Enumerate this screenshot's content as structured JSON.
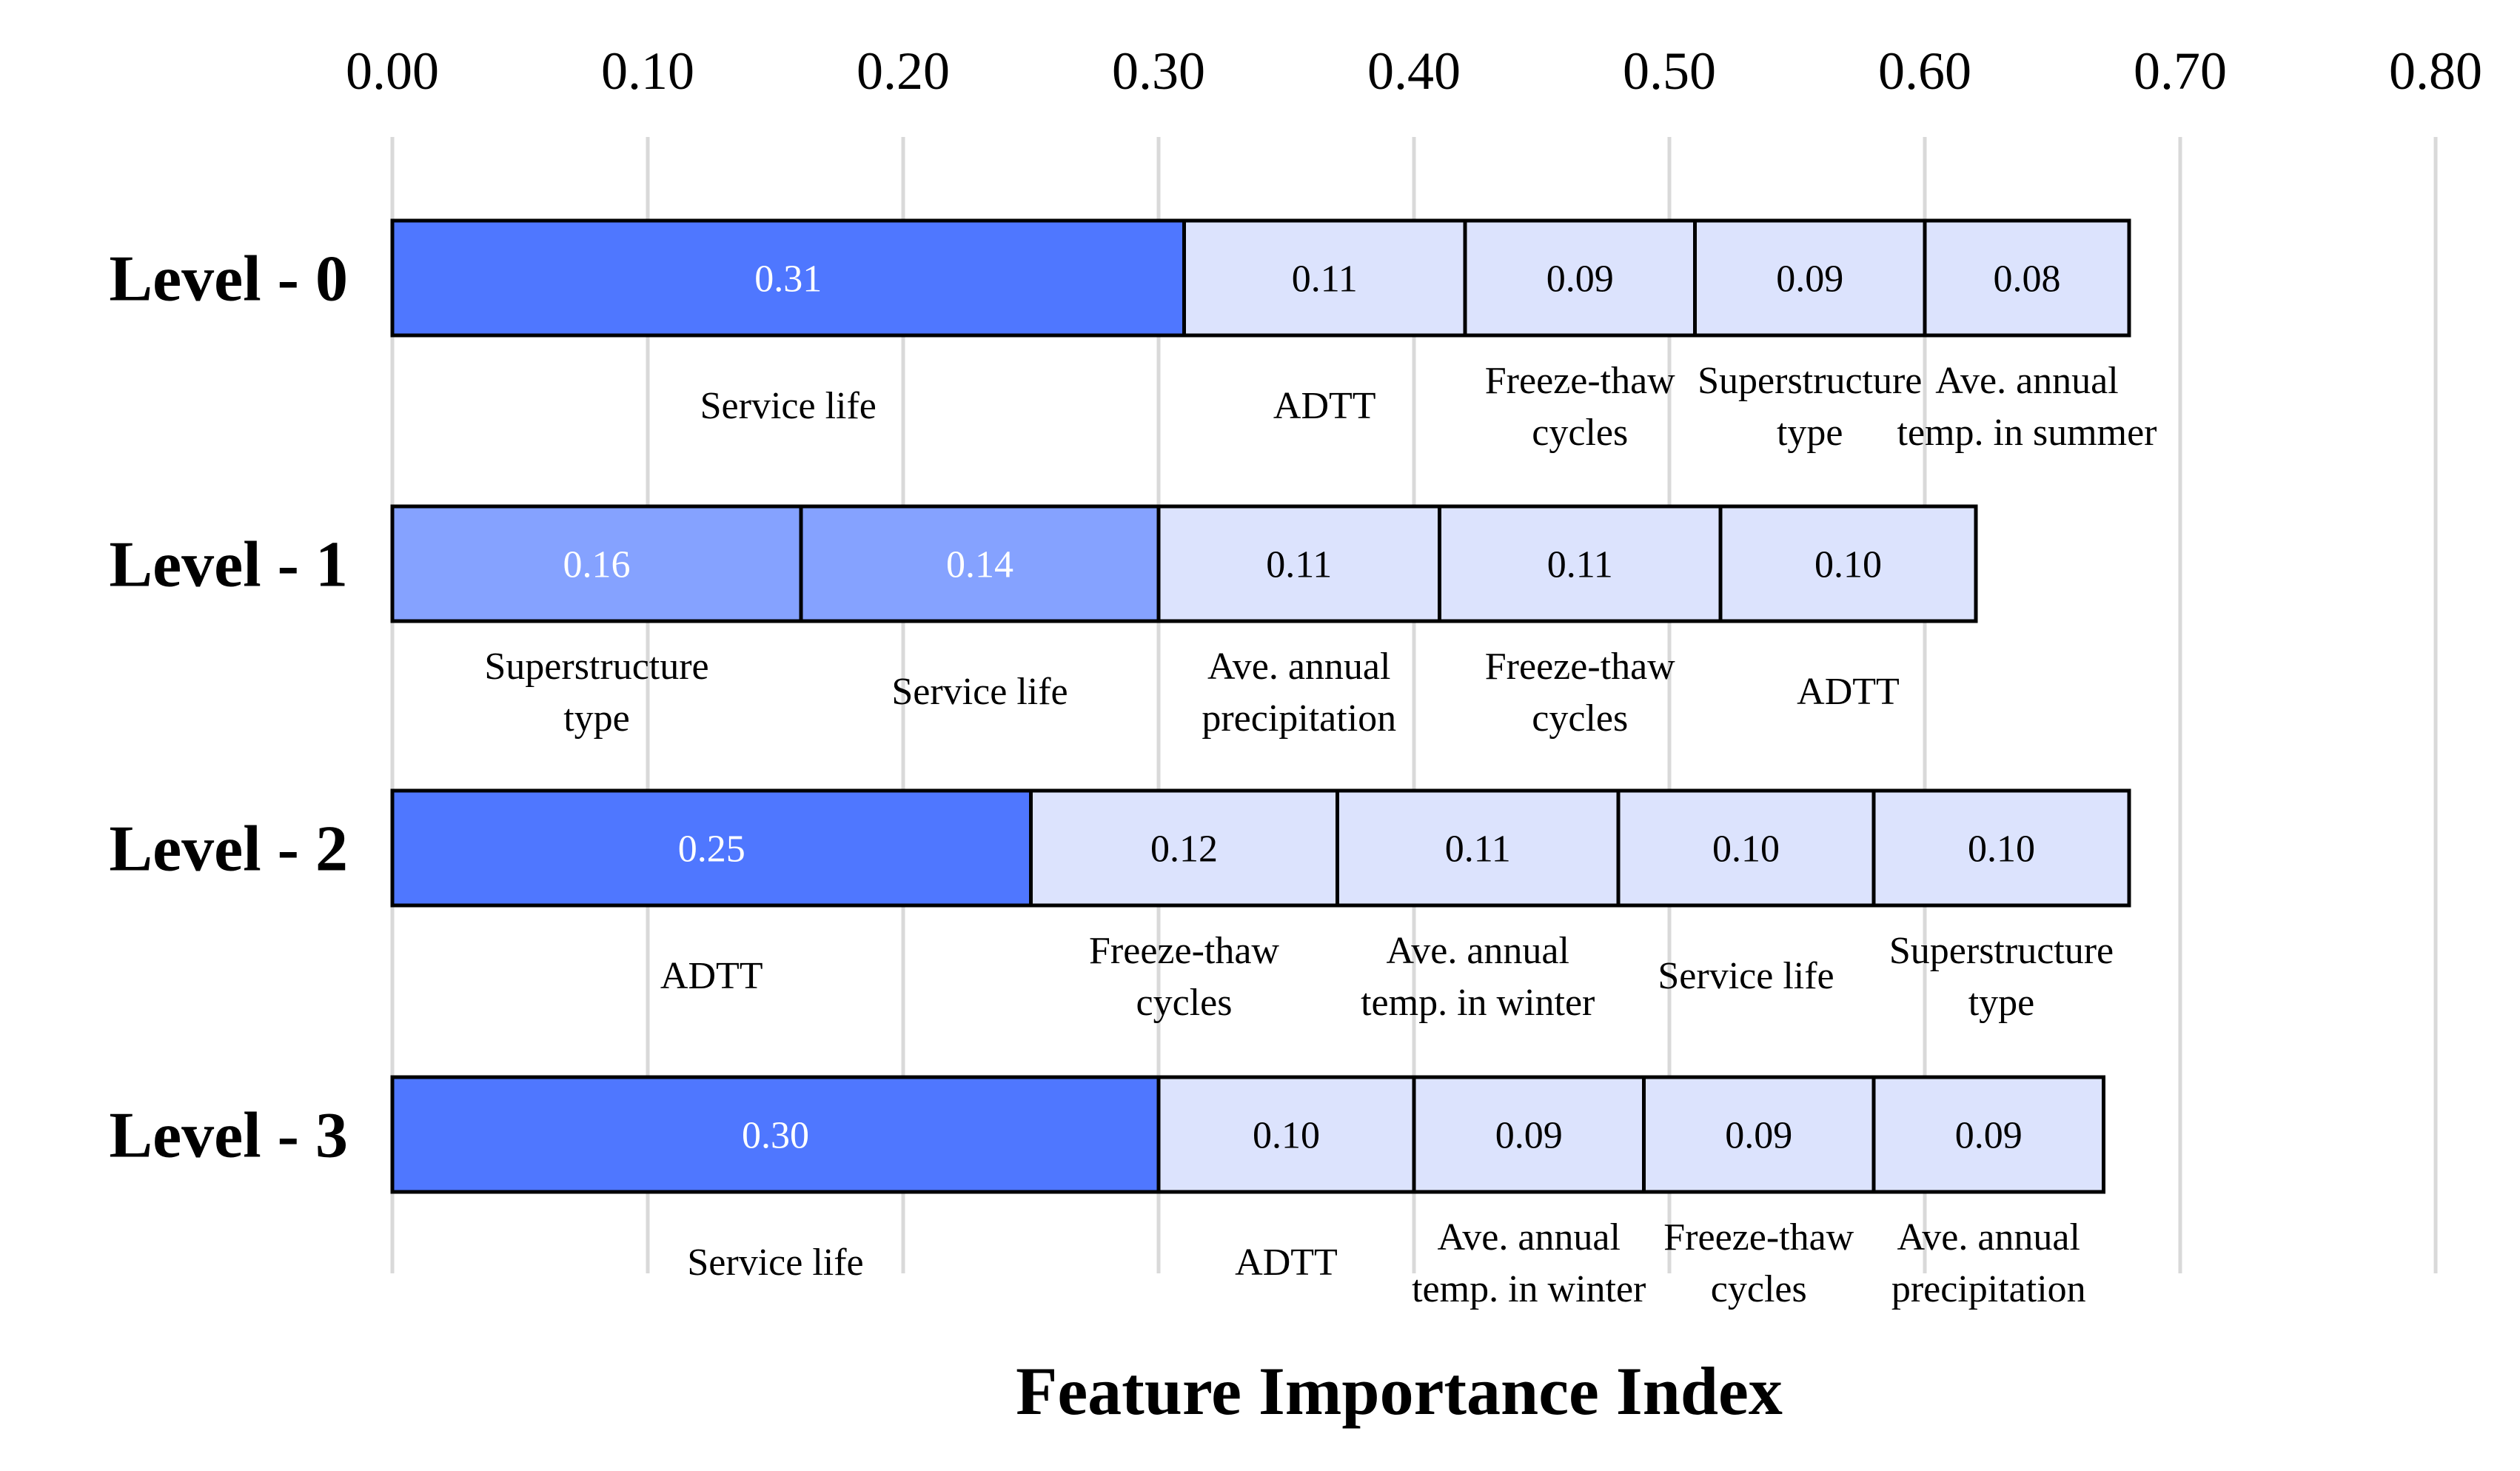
{
  "chart_data": {
    "type": "bar",
    "orientation": "horizontal",
    "stacked": true,
    "xlabel": "Feature Importance Index",
    "xlim": [
      0,
      0.8
    ],
    "xticks": [
      "0.00",
      "0.10",
      "0.20",
      "0.30",
      "0.40",
      "0.50",
      "0.60",
      "0.70",
      "0.80"
    ],
    "grid": true,
    "colors": {
      "dark": "#4f77ff",
      "medium": "#85a2ff",
      "light": "#dce3fd",
      "grid": "#d9d9d9",
      "outline": "#000000"
    },
    "rows": [
      {
        "category": "Level - 0",
        "segments": [
          {
            "value": 0.31,
            "label": "0.31",
            "feature": [
              "Service life"
            ],
            "shade": "dark"
          },
          {
            "value": 0.11,
            "label": "0.11",
            "feature": [
              "ADTT"
            ],
            "shade": "light"
          },
          {
            "value": 0.09,
            "label": "0.09",
            "feature": [
              "Freeze-thaw",
              "cycles"
            ],
            "shade": "light"
          },
          {
            "value": 0.09,
            "label": "0.09",
            "feature": [
              "Superstructure",
              "type"
            ],
            "shade": "light"
          },
          {
            "value": 0.08,
            "label": "0.08",
            "feature": [
              "Ave. annual",
              "temp. in summer"
            ],
            "shade": "light"
          }
        ]
      },
      {
        "category": "Level - 1",
        "segments": [
          {
            "value": 0.16,
            "label": "0.16",
            "feature": [
              "Superstructure",
              "type"
            ],
            "shade": "medium"
          },
          {
            "value": 0.14,
            "label": "0.14",
            "feature": [
              "Service life"
            ],
            "shade": "medium"
          },
          {
            "value": 0.11,
            "label": "0.11",
            "feature": [
              "Ave. annual",
              "precipitation"
            ],
            "shade": "light"
          },
          {
            "value": 0.11,
            "label": "0.11",
            "feature": [
              "Freeze-thaw",
              "cycles"
            ],
            "shade": "light"
          },
          {
            "value": 0.1,
            "label": "0.10",
            "feature": [
              "ADTT"
            ],
            "shade": "light"
          }
        ]
      },
      {
        "category": "Level - 2",
        "segments": [
          {
            "value": 0.25,
            "label": "0.25",
            "feature": [
              "ADTT"
            ],
            "shade": "dark"
          },
          {
            "value": 0.12,
            "label": "0.12",
            "feature": [
              "Freeze-thaw",
              "cycles"
            ],
            "shade": "light"
          },
          {
            "value": 0.11,
            "label": "0.11",
            "feature": [
              "Ave. annual",
              "temp. in winter"
            ],
            "shade": "light"
          },
          {
            "value": 0.1,
            "label": "0.10",
            "feature": [
              "Service life"
            ],
            "shade": "light"
          },
          {
            "value": 0.1,
            "label": "0.10",
            "feature": [
              "Superstructure",
              "type"
            ],
            "shade": "light"
          }
        ]
      },
      {
        "category": "Level - 3",
        "segments": [
          {
            "value": 0.3,
            "label": "0.30",
            "feature": [
              "Service life"
            ],
            "shade": "dark"
          },
          {
            "value": 0.1,
            "label": "0.10",
            "feature": [
              "ADTT"
            ],
            "shade": "light"
          },
          {
            "value": 0.09,
            "label": "0.09",
            "feature": [
              "Ave. annual",
              "temp. in winter"
            ],
            "shade": "light"
          },
          {
            "value": 0.09,
            "label": "0.09",
            "feature": [
              "Freeze-thaw",
              "cycles"
            ],
            "shade": "light"
          },
          {
            "value": 0.09,
            "label": "0.09",
            "feature": [
              "Ave. annual",
              "precipitation"
            ],
            "shade": "light"
          }
        ]
      }
    ]
  }
}
